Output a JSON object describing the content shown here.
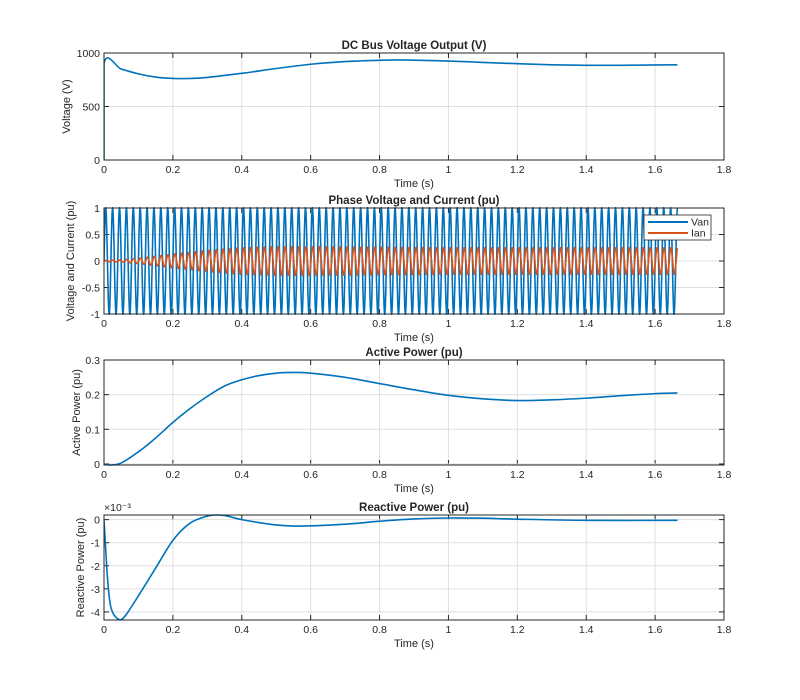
{
  "chart_data": [
    {
      "type": "line",
      "title": "DC Bus Voltage Output (V)",
      "xlabel": "Time (s)",
      "ylabel": "Voltage (V)",
      "xlim": [
        0,
        1.8
      ],
      "ylim": [
        0,
        1000
      ],
      "xticks": [
        "0",
        "0.2",
        "0.4",
        "0.6",
        "0.8",
        "1",
        "1.2",
        "1.4",
        "1.6",
        "1.8"
      ],
      "yticks": [
        "0",
        "500",
        "1000"
      ],
      "grid": true,
      "series": [
        {
          "color": "#0072BD",
          "x": [
            0,
            0,
            0.05,
            0.1,
            0.15,
            0.2,
            0.25,
            0.3,
            0.4,
            0.5,
            0.6,
            0.7,
            0.8,
            0.85,
            0.9,
            1.0,
            1.1,
            1.2,
            1.3,
            1.4,
            1.5,
            1.6,
            1.665
          ],
          "y": [
            0,
            900,
            850,
            805,
            775,
            762,
            762,
            772,
            810,
            855,
            895,
            920,
            932,
            935,
            933,
            925,
            912,
            900,
            890,
            885,
            885,
            888,
            890
          ]
        }
      ]
    },
    {
      "type": "line",
      "title": "Phase Voltage and Current (pu)",
      "xlabel": "Time (s)",
      "ylabel": "Voltage and Current (pu)",
      "xlim": [
        0,
        1.8
      ],
      "ylim": [
        -1,
        1
      ],
      "xticks": [
        "0",
        "0.2",
        "0.4",
        "0.6",
        "0.8",
        "1",
        "1.2",
        "1.4",
        "1.6",
        "1.8"
      ],
      "yticks": [
        "-1",
        "-0.5",
        "0",
        "0.5",
        "1"
      ],
      "grid": true,
      "legend": {
        "position": "top-right",
        "entries": [
          "Van",
          "Ian"
        ]
      },
      "series": [
        {
          "name": "Van",
          "color": "#0072BD",
          "frequency_hz": 50,
          "t_end": 1.665,
          "envelope_t": [
            0,
            1.665
          ],
          "envelope_amp": [
            1,
            1
          ]
        },
        {
          "name": "Ian",
          "color": "#D95319",
          "frequency_hz": 50,
          "t_end": 1.665,
          "envelope_t": [
            0,
            0.05,
            0.1,
            0.2,
            0.3,
            0.4,
            0.5,
            0.6,
            0.8,
            1.0,
            1.2,
            1.4,
            1.665
          ],
          "envelope_amp": [
            0.01,
            0.02,
            0.05,
            0.13,
            0.2,
            0.25,
            0.27,
            0.27,
            0.26,
            0.25,
            0.25,
            0.25,
            0.25
          ]
        }
      ]
    },
    {
      "type": "line",
      "title": "Active Power (pu)",
      "xlabel": "Time (s)",
      "ylabel": "Active Power (pu)",
      "xlim": [
        0,
        1.8
      ],
      "ylim": [
        -0.003,
        0.3
      ],
      "xticks": [
        "0",
        "0.2",
        "0.4",
        "0.6",
        "0.8",
        "1",
        "1.2",
        "1.4",
        "1.6",
        "1.8"
      ],
      "yticks": [
        "0",
        "0.1",
        "0.2",
        "0.3"
      ],
      "grid": true,
      "series": [
        {
          "color": "#0072BD",
          "x": [
            0,
            0.02,
            0.05,
            0.1,
            0.15,
            0.2,
            0.25,
            0.3,
            0.35,
            0.4,
            0.45,
            0.5,
            0.55,
            0.6,
            0.7,
            0.8,
            0.9,
            1.0,
            1.1,
            1.2,
            1.3,
            1.4,
            1.5,
            1.6,
            1.665
          ],
          "y": [
            0,
            -0.003,
            0.003,
            0.035,
            0.075,
            0.12,
            0.16,
            0.195,
            0.225,
            0.243,
            0.255,
            0.262,
            0.264,
            0.262,
            0.25,
            0.232,
            0.214,
            0.198,
            0.188,
            0.183,
            0.185,
            0.19,
            0.197,
            0.203,
            0.205
          ]
        }
      ]
    },
    {
      "type": "line",
      "title": "Reactive Power (pu)",
      "xlabel": "Time (s)",
      "ylabel": "Reactive Power (pu)",
      "y_exponent_label": "×10⁻³",
      "xlim": [
        0,
        1.8
      ],
      "ylim": [
        -4.35,
        0.2
      ],
      "xticks": [
        "0",
        "0.2",
        "0.4",
        "0.6",
        "0.8",
        "1",
        "1.2",
        "1.4",
        "1.6",
        "1.8"
      ],
      "yticks": [
        "-4",
        "-3",
        "-2",
        "-1",
        "0"
      ],
      "grid": true,
      "series": [
        {
          "color": "#0072BD",
          "x": [
            0,
            0.01,
            0.02,
            0.04,
            0.06,
            0.1,
            0.15,
            0.2,
            0.25,
            0.3,
            0.33,
            0.36,
            0.4,
            0.5,
            0.58,
            0.7,
            0.8,
            0.9,
            1.0,
            1.1,
            1.2,
            1.4,
            1.665
          ],
          "y": [
            0,
            -2.5,
            -3.8,
            -4.3,
            -4.2,
            -3.3,
            -2.1,
            -0.9,
            -0.15,
            0.15,
            0.2,
            0.15,
            0.0,
            -0.23,
            -0.28,
            -0.2,
            -0.07,
            0.03,
            0.07,
            0.06,
            0.02,
            -0.03,
            -0.03
          ]
        }
      ]
    }
  ]
}
